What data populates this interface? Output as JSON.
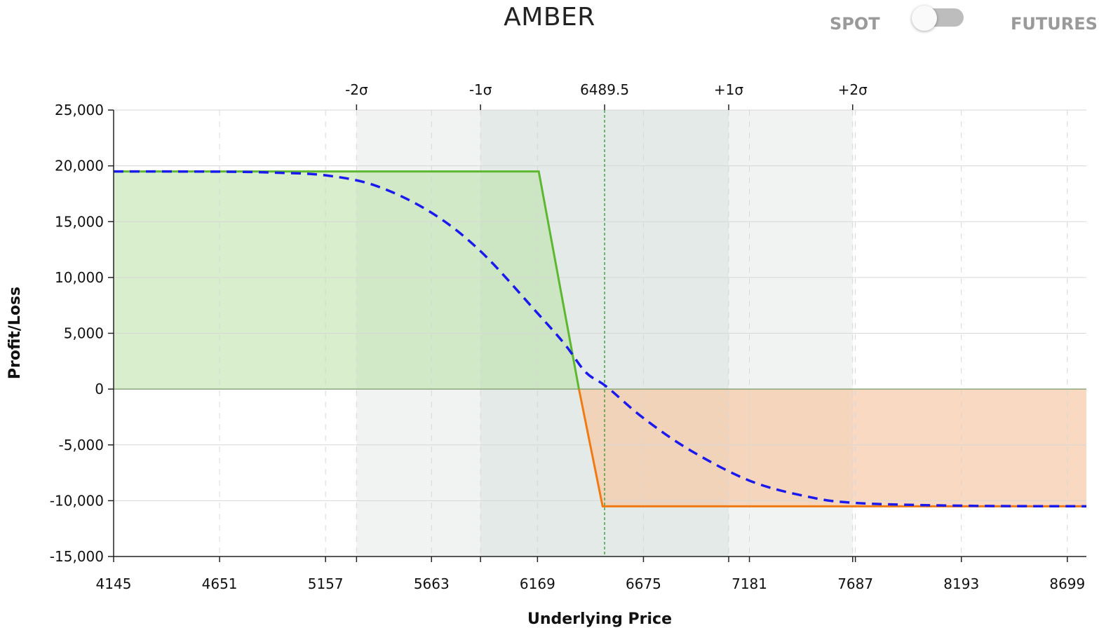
{
  "header": {
    "title": "AMBER",
    "toggle": {
      "left_label": "SPOT",
      "right_label": "FUTURES",
      "state": "spot"
    }
  },
  "chart_data": {
    "type": "line",
    "title": "AMBER",
    "xlabel": "Underlying Price",
    "ylabel": "Profit/Loss",
    "xlim": [
      4145,
      8790
    ],
    "ylim": [
      -15000,
      25000
    ],
    "x_ticks": [
      4145,
      4651,
      5157,
      5663,
      6169,
      6675,
      7181,
      7687,
      8193,
      8699
    ],
    "y_ticks": [
      25000,
      20000,
      15000,
      10000,
      5000,
      0,
      -5000,
      -10000,
      -15000
    ],
    "y_tick_labels": [
      "25,000",
      "20,000",
      "15,000",
      "10,000",
      "5,000",
      "0",
      "-5,000",
      "-10,000",
      "-15,000"
    ],
    "grid": true,
    "current_price": {
      "value": 6489.5,
      "label": "6489.5"
    },
    "sigma_markers": [
      {
        "label": "-2σ",
        "value": 5305
      },
      {
        "label": "-1σ",
        "value": 5897
      },
      {
        "label": "+1σ",
        "value": 7082
      },
      {
        "label": "+2σ",
        "value": 7674
      }
    ],
    "sigma_bands": [
      {
        "from": 5305,
        "to": 7674,
        "color": "#f0f3f2"
      },
      {
        "from": 5897,
        "to": 7082,
        "color": "#e4eae7"
      }
    ],
    "series": [
      {
        "style": "solid",
        "points": [
          [
            4145,
            19500
          ],
          [
            6175,
            19500
          ],
          [
            6367,
            0
          ],
          [
            6480,
            -10500
          ],
          [
            8790,
            -10500
          ]
        ],
        "color_profit": "#5cb82e",
        "color_loss": "#f07a14",
        "fill_profit": "#b8e0a4",
        "fill_loss": "#f7c9a6"
      },
      {
        "style": "dashed",
        "color": "#1a1aee",
        "points": [
          [
            4145,
            19500
          ],
          [
            4651,
            19480
          ],
          [
            4900,
            19400
          ],
          [
            5157,
            19150
          ],
          [
            5400,
            18200
          ],
          [
            5663,
            15800
          ],
          [
            5900,
            12300
          ],
          [
            6169,
            6800
          ],
          [
            6300,
            4000
          ],
          [
            6400,
            1500
          ],
          [
            6500,
            200
          ],
          [
            6675,
            -2600
          ],
          [
            6900,
            -5500
          ],
          [
            7181,
            -8200
          ],
          [
            7450,
            -9600
          ],
          [
            7687,
            -10200
          ],
          [
            8193,
            -10450
          ],
          [
            8790,
            -10500
          ]
        ]
      }
    ],
    "colors": {
      "grid": "#d7d7d7",
      "axis": "#222222",
      "current_price_line": "#2e9a2e",
      "zero_line": "#7a9a6a"
    }
  }
}
